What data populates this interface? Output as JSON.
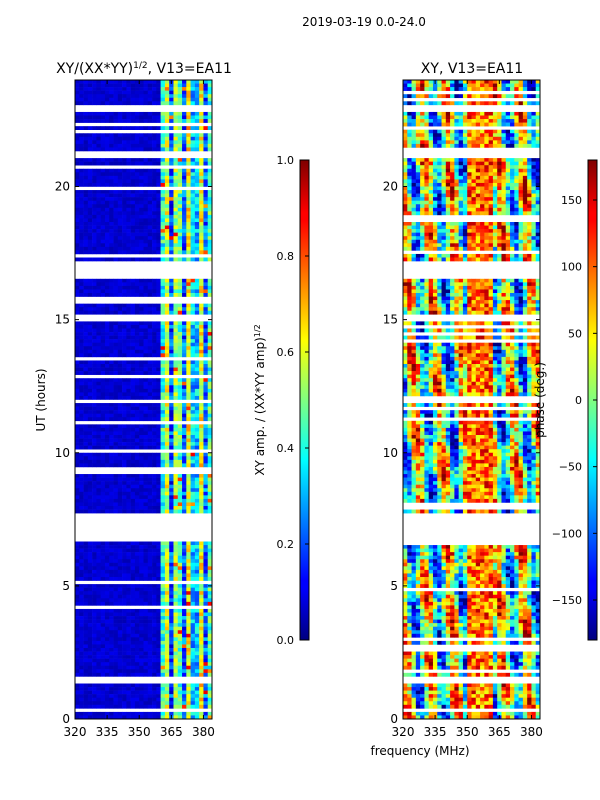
{
  "figure_title": "2019-03-19 0.0-24.0",
  "chart_data": [
    {
      "type": "heatmap",
      "title": "XY/(XX*YY)^{1/2}, V13=EA11",
      "title_main": "XY/(XX*YY)",
      "title_sup": "1/2",
      "title_tail": ", V13=EA11",
      "xlabel": "",
      "ylabel": "UT (hours)",
      "xlim": [
        320,
        384
      ],
      "ylim": [
        0,
        24
      ],
      "xticks": [
        320,
        335,
        350,
        365,
        380
      ],
      "yticks": [
        0,
        5,
        10,
        15,
        20
      ],
      "colormap": "jet",
      "colorbar": {
        "label_main": "XY amp. / (XX*YY amp)",
        "label_sup": "1/2",
        "range": [
          0.0,
          1.0
        ],
        "ticks": [
          "0.0",
          "0.2",
          "0.4",
          "0.6",
          "0.8",
          "1.0"
        ],
        "tick_values": [
          0.0,
          0.2,
          0.4,
          0.6,
          0.8,
          1.0
        ]
      },
      "gaps_hours": [
        [
          7.8,
          6.7
        ],
        [
          17.2,
          16.6
        ],
        [
          1.6,
          1.3
        ],
        [
          0.4,
          0.25
        ],
        [
          15.2,
          15.0
        ],
        [
          21.3,
          21.1
        ],
        [
          23.0,
          22.85
        ]
      ]
    },
    {
      "type": "heatmap",
      "title": "XY, V13=EA11",
      "xlabel": "frequency (MHz)",
      "ylabel": "",
      "xlim": [
        320,
        384
      ],
      "ylim": [
        0,
        24
      ],
      "xticks": [
        320,
        335,
        350,
        365,
        380
      ],
      "yticks": [
        0,
        5,
        10,
        15,
        20
      ],
      "colormap": "jet",
      "colorbar": {
        "label": "phase (deg.)",
        "range": [
          -180,
          180
        ],
        "ticks": [
          "150",
          "100",
          "50",
          "0",
          "−50",
          "−100",
          "−150"
        ],
        "tick_values": [
          150,
          100,
          50,
          0,
          -50,
          -100,
          -150
        ]
      },
      "gaps_hours": [
        [
          7.8,
          6.7
        ],
        [
          17.2,
          16.6
        ],
        [
          1.6,
          1.3
        ],
        [
          0.4,
          0.25
        ],
        [
          15.2,
          15.0
        ],
        [
          21.3,
          21.1
        ],
        [
          23.0,
          22.85
        ]
      ]
    }
  ]
}
